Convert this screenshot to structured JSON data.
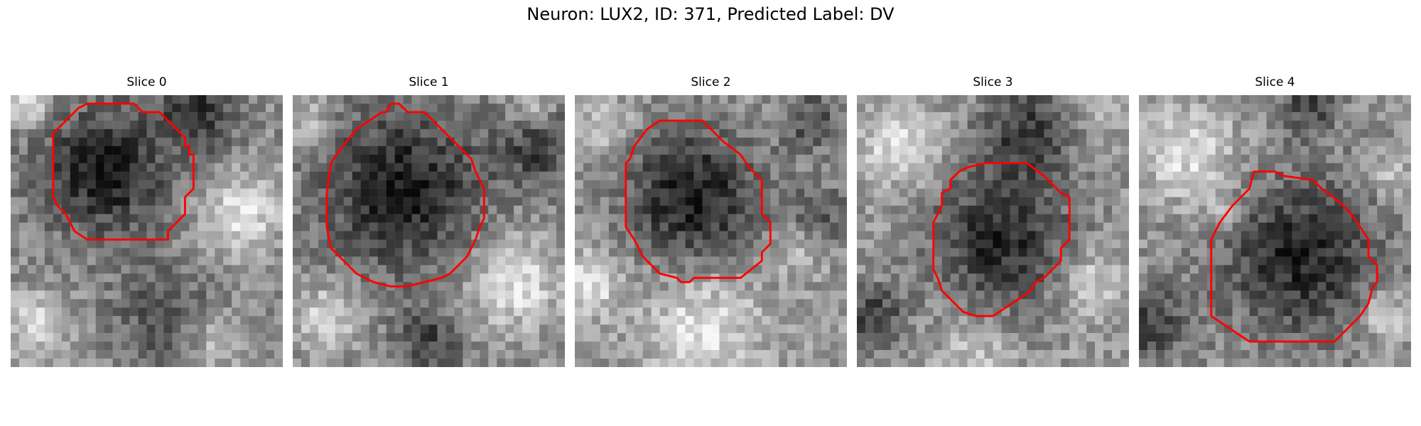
{
  "figure": {
    "title": "Neuron: LUX2, ID: 371, Predicted Label: DV"
  },
  "colors": {
    "background": "#ffffff",
    "contour": "#ff0000",
    "text": "#000000"
  },
  "panels": [
    {
      "label": "Slice 0"
    },
    {
      "label": "Slice 1"
    },
    {
      "label": "Slice 2"
    },
    {
      "label": "Slice 3"
    },
    {
      "label": "Slice 4"
    }
  ]
}
